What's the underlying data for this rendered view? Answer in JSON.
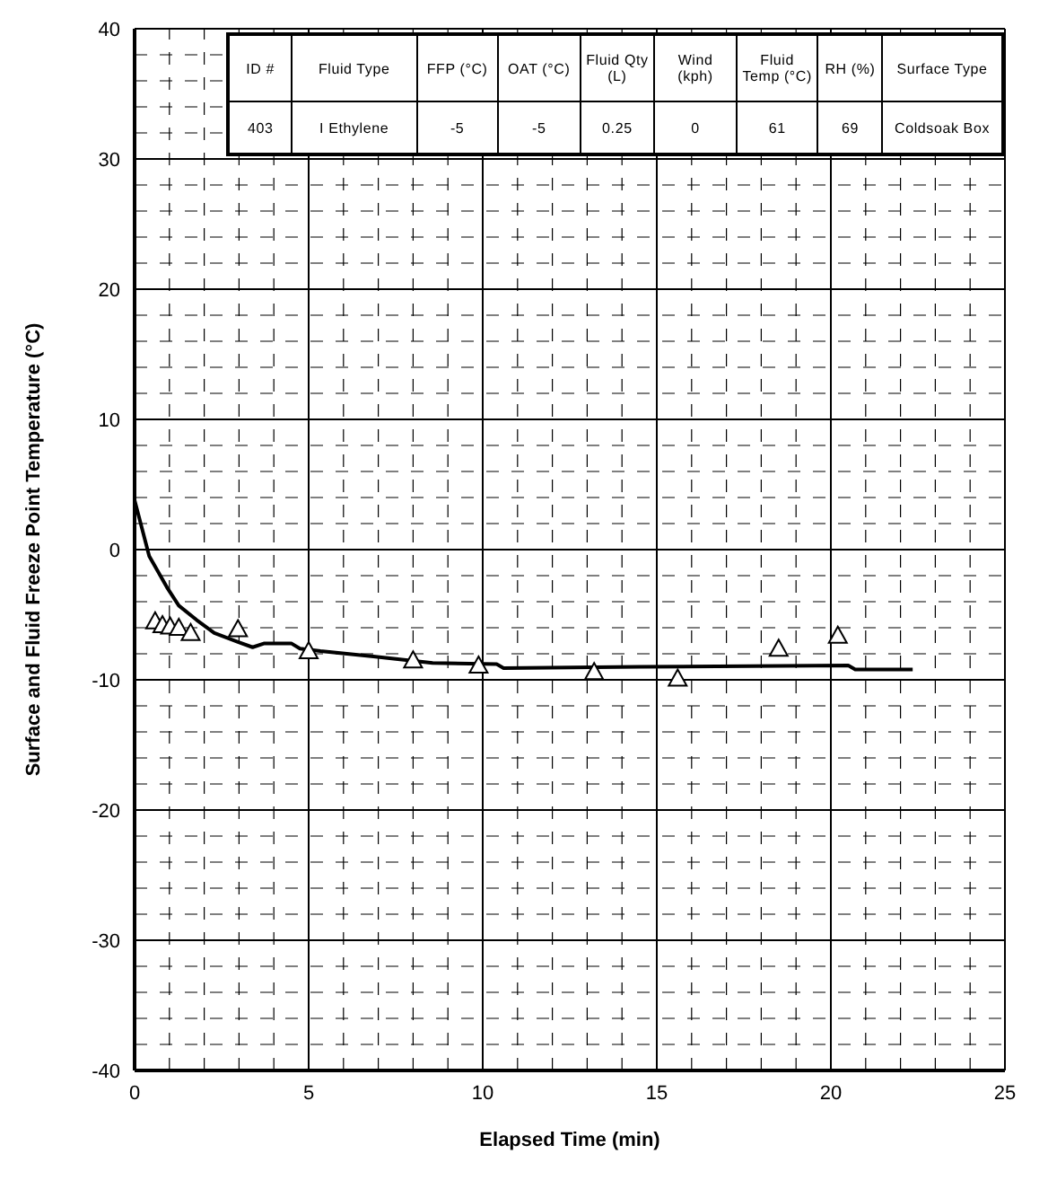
{
  "chart_data": {
    "type": "line",
    "xlabel": "Elapsed Time (min)",
    "ylabel": "Surface and Fluid Freeze Point Temperature (°C)",
    "xlim": [
      0,
      25
    ],
    "xticks": [
      0,
      5,
      10,
      15,
      20,
      25
    ],
    "ylim": [
      -40,
      40
    ],
    "yticks": [
      -40,
      -30,
      -20,
      -10,
      0,
      10,
      20,
      30,
      40
    ],
    "grid": true,
    "series": [
      {
        "color": "#000000",
        "marker": "none",
        "line_style": "solid",
        "x": [
          0,
          0.42,
          0.93,
          1.27,
          1.78,
          2.29,
          2.97,
          3.39,
          3.73,
          4.5,
          4.75,
          5.34,
          6.86,
          8.56,
          10.4,
          10.6,
          14.5,
          20.5,
          20.7,
          22.35
        ],
        "values": [
          3.8,
          -0.5,
          -2.9,
          -4.3,
          -5.4,
          -6.4,
          -7.1,
          -7.5,
          -7.2,
          -7.2,
          -7.6,
          -7.8,
          -8.2,
          -8.7,
          -8.8,
          -9.1,
          -9.0,
          -8.9,
          -9.2,
          -9.2
        ]
      },
      {
        "type": "scatter",
        "color": "#000000",
        "marker": "triangle",
        "x": [
          0.59,
          0.8,
          1.02,
          1.27,
          1.61,
          2.97,
          5.0,
          8.0,
          9.88,
          13.2,
          15.6,
          18.5,
          20.2
        ],
        "values": [
          -5.5,
          -5.8,
          -5.9,
          -6.0,
          -6.4,
          -6.1,
          -7.8,
          -8.5,
          -8.9,
          -9.4,
          -9.9,
          -7.6,
          -6.6
        ]
      }
    ],
    "annotations": [
      "ID #",
      "Fluid Type",
      "FFP (°C)",
      "OAT (°C)",
      "Fluid Qty (L)",
      "Wind (kph)",
      "Fluid Temp (°C)",
      "RH (%)",
      "Surface Type",
      "403",
      "I Ethylene",
      "-5",
      "-5",
      "0.25",
      "0",
      "61",
      "69",
      "Coldsoak Box"
    ]
  }
}
